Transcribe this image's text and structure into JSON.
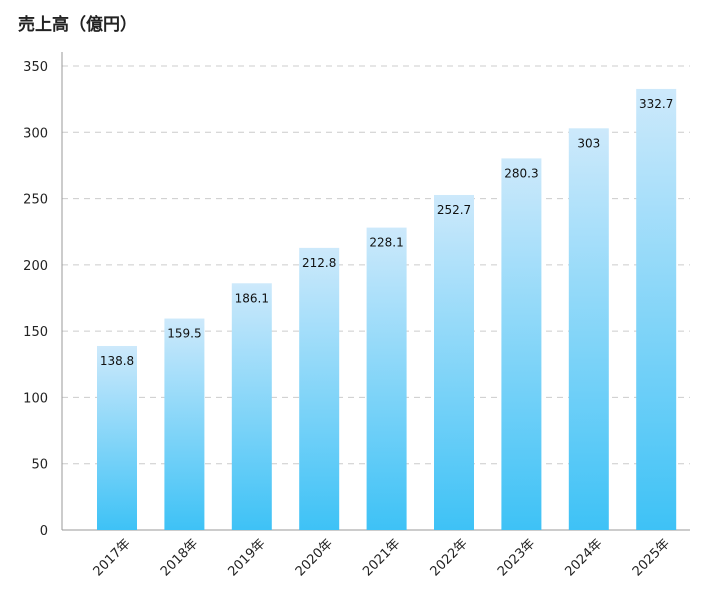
{
  "chart_data": {
    "type": "bar",
    "title": "売上高（億円）",
    "xlabel": "",
    "ylabel": "",
    "categories": [
      "2017年",
      "2018年",
      "2019年",
      "2020年",
      "2021年",
      "2022年",
      "2023年",
      "2024年",
      "2025年"
    ],
    "values": [
      138.8,
      159.5,
      186.1,
      212.8,
      228.1,
      252.7,
      280.3,
      303,
      332.7
    ],
    "value_labels": [
      "138.8",
      "159.5",
      "186.1",
      "212.8",
      "228.1",
      "252.7",
      "280.3",
      "303",
      "332.7"
    ],
    "ylim": [
      0,
      350
    ],
    "yticks": [
      0,
      50,
      100,
      150,
      200,
      250,
      300,
      350
    ],
    "grid": true,
    "legend": "none",
    "colors": {
      "bar_top": "#cde9fb",
      "bar_bottom": "#3ec2f6",
      "grid": "#cccccc",
      "axis": "#999999"
    }
  }
}
